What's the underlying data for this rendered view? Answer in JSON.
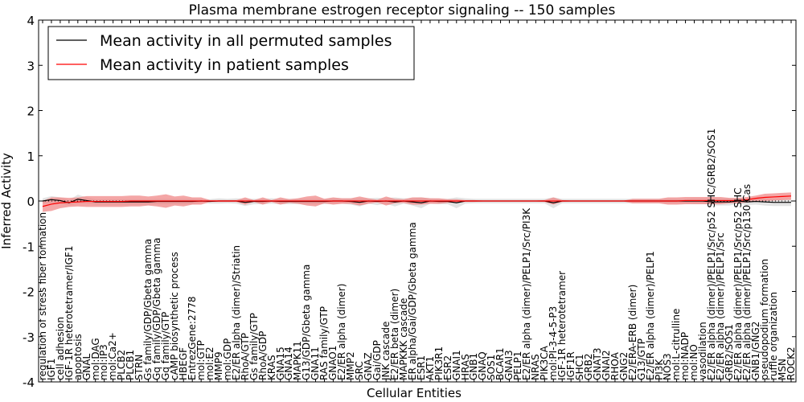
{
  "chart_data": {
    "type": "line",
    "title": "Plasma membrane estrogen receptor signaling -- 150 samples",
    "xlabel": "Cellular Entities",
    "ylabel": "Inferred Activity",
    "ylim": [
      -4,
      4
    ],
    "yticks": [
      -4,
      -3,
      -2,
      -1,
      0,
      1,
      2,
      3,
      4
    ],
    "legend_position": "top-left",
    "categories": [
      "regulation of stress fiber formation",
      "IGF1",
      "cell adhesion",
      "IGF-1R heterotetramer/IGF1",
      "apoptosis",
      "GNAL",
      "mol:DAG",
      "mol:IP3",
      "mol:Ca2+",
      "PLCB2",
      "PLCB1",
      "STRN",
      "Gs family/GDP/Gbeta gamma",
      "Gq family/GDP/Gbeta gamma",
      "Gq family/GTP",
      "cAMP biosynthetic process",
      "HBEGF",
      "EntrezGene:2778",
      "mol:GTP",
      "mol:E2",
      "MMP9",
      "mol:GDP",
      "E2/ER alpha (dimer)/Striatin",
      "RhoA/GTP",
      "Gs family/GTP",
      "RhoA/GDP",
      "KRAS",
      "GNA15",
      "GNA14",
      "MAPK11",
      "G13/GDP/Gbeta gamma",
      "GNA11",
      "RAS family/GTP",
      "GNAO1",
      "E2/ER alpha (dimer)",
      "MMP2",
      "SRC",
      "GNAZ",
      "Gai/GDP",
      "JNK cascade",
      "E2/ER beta (dimer)",
      "MAPKKK cascade",
      "ER alpha/Gai/GDP/Gbeta gamma",
      "ESR1",
      "AKT1",
      "PIK3R1",
      "ESR2",
      "GNAI1",
      "HRAS",
      "GNB1",
      "GNAQ",
      "SOS1",
      "BCAR1",
      "GNAI3",
      "PELP1",
      "E2/ER alpha (dimer)/PELP1/Src/PI3K",
      "NRAS",
      "PIK3CA",
      "mol:PI-3-4-5-P3",
      "IGF-1R heterotetramer",
      "IGF1R",
      "SHC1",
      "GRB2",
      "GNAT3",
      "GNAI2",
      "RHOA",
      "GNG2",
      "E2/ERA-ERB (dimer)",
      "G13/GTP",
      "E2/ER alpha (dimer)/PELP1",
      "PI3K",
      "NOS3",
      "mol:L-citrulline",
      "mol:NADP",
      "mol:NO",
      "vasodilation",
      "E2/ER alpha (dimer)/PELP1/Src/p52 SHC/GRB2/SOS1",
      "E2/ER alpha (dimer)/PELP1/Src",
      "GRB2/SOS1",
      "E2/ER alpha (dimer)/PELP1/Src/p52 SHC",
      "E2/ER alpha (dimer)/PELP1/Src/p130 Cas",
      "GNB1/GNG2",
      "pseudopodium formation",
      "ruffle organization",
      "MSN",
      "ROCK2"
    ],
    "series": [
      {
        "name": "Mean activity in all permuted samples",
        "color": "#000000",
        "band_color": "#d9d9d9",
        "values": [
          0,
          0.03,
          0.01,
          -0.04,
          0.04,
          0.01,
          -0.02,
          -0.02,
          -0.02,
          -0.02,
          -0.02,
          -0.02,
          -0.02,
          -0.01,
          -0.01,
          -0.01,
          -0.01,
          -0.01,
          0,
          -0.01,
          0,
          0,
          0,
          -0.03,
          -0.01,
          -0.01,
          0,
          -0.01,
          -0.01,
          -0.01,
          -0.01,
          -0.01,
          -0.01,
          0,
          0,
          -0.01,
          -0.03,
          0,
          -0.01,
          0,
          -0.02,
          0,
          -0.02,
          -0.04,
          0,
          -0.01,
          -0.01,
          -0.04,
          0,
          0,
          0,
          0,
          0,
          0,
          0,
          0,
          0,
          0,
          -0.04,
          0,
          0,
          0,
          0,
          0,
          0,
          0,
          0,
          0,
          0,
          0,
          0,
          0,
          0,
          0,
          0,
          0,
          -0.02,
          -0.02,
          -0.02,
          0,
          -0.02,
          -0.01,
          -0.02,
          -0.03,
          -0.03,
          -0.03
        ],
        "band": [
          0.06,
          0.08,
          0.07,
          0.06,
          0.1,
          0.07,
          0.06,
          0.06,
          0.06,
          0.06,
          0.06,
          0.06,
          0.06,
          0.06,
          0.06,
          0.06,
          0.06,
          0.06,
          0.04,
          0.05,
          0.06,
          0.05,
          0.06,
          0.08,
          0.06,
          0.06,
          0.06,
          0.06,
          0.06,
          0.06,
          0.06,
          0.06,
          0.06,
          0.06,
          0.06,
          0.07,
          0.09,
          0.06,
          0.08,
          0.06,
          0.1,
          0.06,
          0.08,
          0.12,
          0.06,
          0.06,
          0.06,
          0.12,
          0.06,
          0.05,
          0.05,
          0.05,
          0.05,
          0.05,
          0.05,
          0.05,
          0.05,
          0.05,
          0.12,
          0.05,
          0.05,
          0.05,
          0.05,
          0.05,
          0.05,
          0.05,
          0.05,
          0.05,
          0.05,
          0.05,
          0.05,
          0.05,
          0.05,
          0.05,
          0.06,
          0.06,
          0.08,
          0.08,
          0.08,
          0.06,
          0.07,
          0.07,
          0.08,
          0.08,
          0.08,
          0.08
        ]
      },
      {
        "name": "Mean activity in patient samples",
        "color": "#ff0000",
        "band_color": "#f08080",
        "values": [
          -0.12,
          -0.07,
          -0.04,
          -0.03,
          -0.02,
          -0.01,
          -0.01,
          -0.01,
          -0.01,
          -0.01,
          0,
          0,
          0,
          0,
          0,
          0,
          0,
          0,
          0,
          0,
          0,
          0,
          0,
          0,
          0,
          0,
          0,
          0,
          0,
          0,
          0,
          0,
          0,
          0,
          0,
          0,
          0,
          0,
          0,
          0,
          0,
          0,
          0,
          0,
          0,
          0,
          0,
          0,
          0,
          0,
          0,
          0,
          0,
          0,
          0,
          0,
          0,
          0,
          0,
          0,
          0,
          0,
          0,
          0,
          0,
          0,
          0,
          0,
          0,
          0,
          0,
          0,
          0,
          0.01,
          0.01,
          0.01,
          0.01,
          0.01,
          0.01,
          0.01,
          0.03,
          0.06,
          0.08,
          0.09,
          0.1,
          0.11
        ],
        "band": [
          0.12,
          0.15,
          0.12,
          0.1,
          0.1,
          0.12,
          0.12,
          0.12,
          0.12,
          0.12,
          0.12,
          0.12,
          0.1,
          0.12,
          0.15,
          0.1,
          0.12,
          0.08,
          0.08,
          0.02,
          0.02,
          0.02,
          0.02,
          0.08,
          0.02,
          0.08,
          0.02,
          0.08,
          0.04,
          0.06,
          0.1,
          0.12,
          0.05,
          0.08,
          0.06,
          0.06,
          0.1,
          0.06,
          0.03,
          0.1,
          0.05,
          0.04,
          0.08,
          0.08,
          0.06,
          0.06,
          0.04,
          0.04,
          0.02,
          0.02,
          0.01,
          0.01,
          0.01,
          0.01,
          0.01,
          0.01,
          0.01,
          0.02,
          0.08,
          0.02,
          0.01,
          0.01,
          0.01,
          0.01,
          0.01,
          0.01,
          0.01,
          0.05,
          0.05,
          0.05,
          0.05,
          0.08,
          0.08,
          0.08,
          0.08,
          0.08,
          0.08,
          0.08,
          0.06,
          0.06,
          0.06,
          0.06,
          0.08,
          0.08,
          0.08,
          0.08
        ]
      }
    ]
  }
}
